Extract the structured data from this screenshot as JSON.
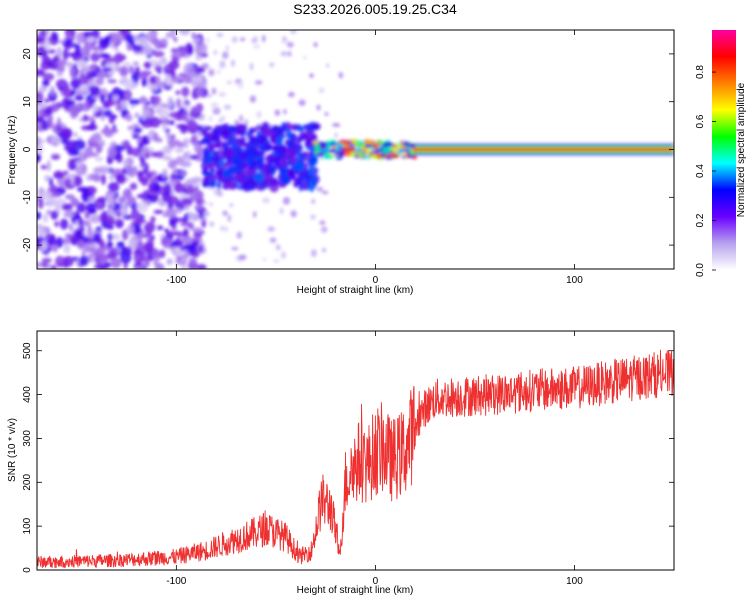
{
  "title": "S233.2026.005.19.25.C34",
  "colorbar": {
    "label": "Normalized spectral amplitude",
    "ticks": [
      "0.0",
      "0.2",
      "0.4",
      "0.6",
      "0.8"
    ],
    "tick_values": [
      0.0,
      0.2,
      0.4,
      0.6,
      0.8
    ],
    "range": [
      0,
      0.97
    ],
    "colors": [
      "#ffffff",
      "#b7a2ee",
      "#6a00ff",
      "#0000ff",
      "#00ffff",
      "#00ff00",
      "#ffff00",
      "#ff8000",
      "#ff0000",
      "#ff00a0"
    ]
  },
  "chart_data": [
    {
      "type": "heatmap",
      "xlabel": "Height of straight line (km)",
      "ylabel": "Frequency (Hz)",
      "xlim": [
        -170,
        150
      ],
      "ylim": [
        -25,
        25
      ],
      "x_ticks": [
        -100,
        0,
        100
      ],
      "y_ticks": [
        -20,
        -10,
        0,
        10,
        20
      ],
      "regions": [
        {
          "x_range": [
            -170,
            -86
          ],
          "y_range": [
            -25,
            25
          ],
          "level": "low scattered noise"
        },
        {
          "x_range": [
            -86,
            -30
          ],
          "y_range": [
            -8,
            5
          ],
          "level": "moderate"
        },
        {
          "x_range": [
            -30,
            20
          ],
          "y_range": [
            -1.5,
            1.5
          ],
          "level": "high, intermittent"
        },
        {
          "x_range": [
            20,
            150
          ],
          "y_range": [
            -1,
            1
          ],
          "level": "peak amplitude near 0 Hz"
        }
      ]
    },
    {
      "type": "line",
      "xlabel": "Height of straight line (km)",
      "ylabel": "SNR (10 * v/v)",
      "xlim": [
        -170,
        150
      ],
      "ylim": [
        0,
        545
      ],
      "x_ticks": [
        -100,
        0,
        100
      ],
      "y_ticks": [
        0,
        100,
        200,
        300,
        400,
        500
      ],
      "color": "#ee3030",
      "trend": {
        "x": [
          -170,
          -130,
          -100,
          -85,
          -70,
          -60,
          -55,
          -45,
          -38,
          -32,
          -27,
          -22,
          -18,
          -15,
          -12,
          -8,
          -4,
          0,
          4,
          8,
          12,
          16,
          20,
          25,
          30,
          40,
          60,
          80,
          100,
          120,
          140,
          150
        ],
        "y": [
          18,
          22,
          30,
          45,
          70,
          85,
          95,
          75,
          30,
          45,
          160,
          140,
          30,
          200,
          230,
          250,
          240,
          270,
          280,
          250,
          260,
          280,
          330,
          370,
          390,
          395,
          400,
          410,
          415,
          430,
          445,
          450
        ]
      }
    }
  ]
}
